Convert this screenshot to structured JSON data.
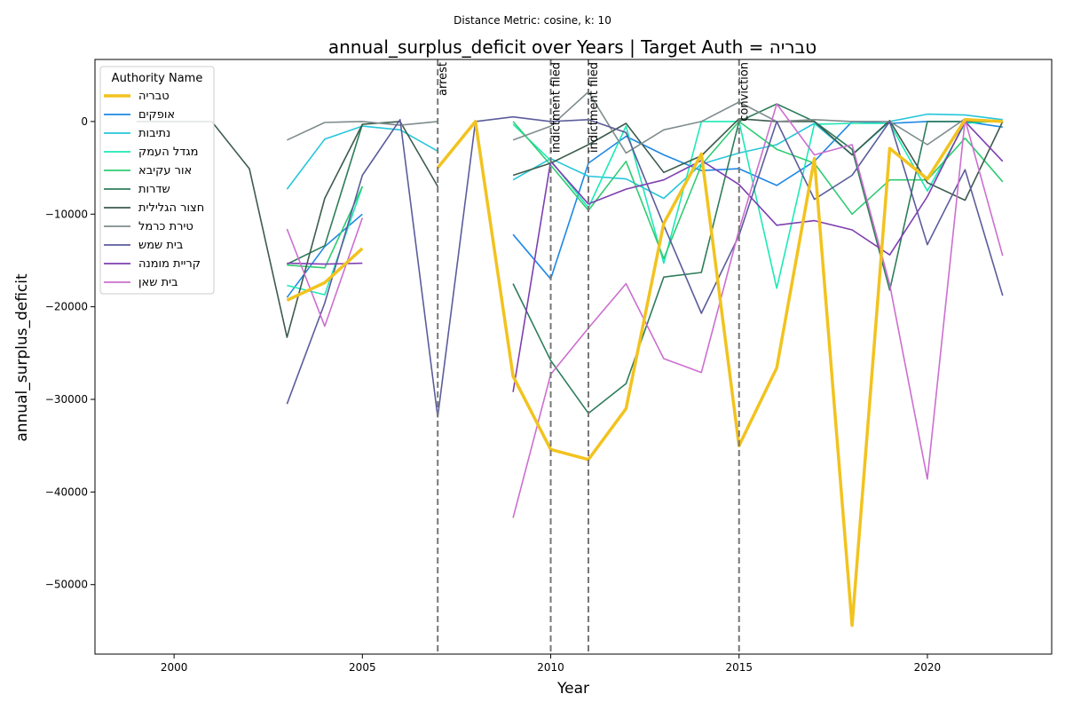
{
  "suptitle": "Distance Metric: cosine, k: 10",
  "chart_data": {
    "type": "line",
    "title": "annual_surplus_deficit over Years | Target Auth = טבריה",
    "xlabel": "Year",
    "ylabel": "annual_surplus_deficit",
    "xlim": [
      1997.9,
      2023.3
    ],
    "ylim": [
      -57500,
      6700
    ],
    "x_ticks": [
      2000,
      2005,
      2010,
      2015,
      2020
    ],
    "y_ticks": [
      -50000,
      -40000,
      -30000,
      -20000,
      -10000,
      0
    ],
    "grid": false,
    "legend": {
      "title": "Authority Name",
      "position": "upper-left"
    },
    "events": [
      {
        "x": 2007,
        "label": "arrest"
      },
      {
        "x": 2010,
        "label": "indictment filed"
      },
      {
        "x": 2011,
        "label": "indictment filed"
      },
      {
        "x": 2015,
        "label": "conviction"
      }
    ],
    "series": [
      {
        "name": "טבריה",
        "color": "#f2c31f",
        "target": true,
        "points": [
          [
            2003,
            -19300
          ],
          [
            2004,
            -17400
          ],
          [
            2005,
            -13700
          ],
          [
            null,
            null
          ],
          [
            2007,
            -5000
          ],
          [
            2008,
            0
          ],
          [
            2009,
            -27500
          ],
          [
            2010,
            -35400
          ],
          [
            2011,
            -36500
          ],
          [
            2012,
            -31000
          ],
          [
            2013,
            -11000
          ],
          [
            2014,
            -3500
          ],
          [
            2015,
            -35000
          ],
          [
            2016,
            -26600
          ],
          [
            2017,
            -4000
          ],
          [
            2018,
            -54400
          ],
          [
            2019,
            -2900
          ],
          [
            2020,
            -6200
          ],
          [
            2021,
            200
          ],
          [
            2022,
            0
          ]
        ]
      },
      {
        "name": "אופקים",
        "color": "#1e88e5",
        "points": [
          [
            2003,
            -19000
          ],
          [
            2004,
            -13500
          ],
          [
            2005,
            -10000
          ],
          [
            null,
            null
          ],
          [
            2009,
            -12200
          ],
          [
            2010,
            -17000
          ],
          [
            2011,
            -4500
          ],
          [
            2012,
            -1600
          ],
          [
            2013,
            -3600
          ],
          [
            2014,
            -5300
          ],
          [
            2015,
            -5100
          ],
          [
            2016,
            -6900
          ],
          [
            2017,
            -4300
          ],
          [
            2018,
            0
          ],
          [
            2019,
            -200
          ],
          [
            2020,
            0
          ],
          [
            2021,
            0
          ],
          [
            2022,
            -600
          ]
        ]
      },
      {
        "name": "נתיבות",
        "color": "#26c6da",
        "points": [
          [
            2003,
            -7300
          ],
          [
            2004,
            -1900
          ],
          [
            2005,
            -500
          ],
          [
            2006,
            -900
          ],
          [
            2007,
            -3200
          ],
          [
            null,
            null
          ],
          [
            2009,
            -6300
          ],
          [
            2010,
            -4000
          ],
          [
            2011,
            -5900
          ],
          [
            2012,
            -6200
          ],
          [
            2013,
            -8300
          ],
          [
            2014,
            -4600
          ],
          [
            2015,
            -3400
          ],
          [
            2016,
            -2500
          ],
          [
            2017,
            -200
          ],
          [
            2018,
            -3600
          ],
          [
            2019,
            0
          ],
          [
            2020,
            800
          ],
          [
            2021,
            700
          ],
          [
            2022,
            200
          ]
        ]
      },
      {
        "name": "מגדל העמק",
        "color": "#1de9b6",
        "points": [
          [
            2003,
            -17700
          ],
          [
            2004,
            -18700
          ],
          [
            2005,
            -7000
          ],
          [
            null,
            null
          ],
          [
            2009,
            -300
          ],
          [
            2010,
            -4200
          ],
          [
            2011,
            -9300
          ],
          [
            2012,
            -500
          ],
          [
            2013,
            -15300
          ],
          [
            2014,
            0
          ],
          [
            2015,
            0
          ],
          [
            2016,
            -18000
          ],
          [
            2017,
            -300
          ],
          [
            2018,
            -200
          ],
          [
            2019,
            -200
          ],
          [
            2020,
            -7500
          ],
          [
            2021,
            -200
          ],
          [
            2022,
            100
          ]
        ]
      },
      {
        "name": "אור עקיבא",
        "color": "#2ecc71",
        "points": [
          [
            2003,
            -15500
          ],
          [
            2004,
            -15800
          ],
          [
            2005,
            -7000
          ],
          [
            null,
            null
          ],
          [
            2009,
            0
          ],
          [
            2010,
            -4700
          ],
          [
            2011,
            -9600
          ],
          [
            2012,
            -4300
          ],
          [
            2013,
            -14800
          ],
          [
            2014,
            -4700
          ],
          [
            2015,
            0
          ],
          [
            2016,
            -3000
          ],
          [
            2017,
            -4500
          ],
          [
            2018,
            -10000
          ],
          [
            2019,
            -6300
          ],
          [
            2020,
            -6300
          ],
          [
            2021,
            -1800
          ],
          [
            2022,
            -6500
          ]
        ]
      },
      {
        "name": "שדרות",
        "color": "#2e7d5b",
        "points": [
          [
            2003,
            -15400
          ],
          [
            2004,
            -13400
          ],
          [
            2005,
            -300
          ],
          [
            null,
            null
          ],
          [
            2009,
            -17500
          ],
          [
            2010,
            -25800
          ],
          [
            2011,
            -31500
          ],
          [
            2012,
            -28300
          ],
          [
            2013,
            -16800
          ],
          [
            2014,
            -16300
          ],
          [
            2015,
            0
          ],
          [
            2016,
            1900
          ],
          [
            2017,
            0
          ],
          [
            2018,
            -3000
          ],
          [
            2019,
            -18200
          ],
          [
            2020,
            0
          ],
          [
            2021,
            0
          ],
          [
            2022,
            0
          ]
        ]
      },
      {
        "name": "חצור הגלילית",
        "color": "#3d5c4d",
        "points": [
          [
            1999,
            0
          ],
          [
            2000,
            0
          ],
          [
            2001,
            0
          ],
          [
            2002,
            -5100
          ],
          [
            2003,
            -23300
          ],
          [
            2004,
            -8300
          ],
          [
            2005,
            -300
          ],
          [
            2006,
            0
          ],
          [
            2007,
            -7000
          ],
          [
            null,
            null
          ],
          [
            2009,
            -5800
          ],
          [
            2010,
            -4500
          ],
          [
            2011,
            -2500
          ],
          [
            2012,
            -200
          ],
          [
            2013,
            -5500
          ],
          [
            2014,
            -3700
          ],
          [
            2015,
            300
          ],
          [
            2016,
            0
          ],
          [
            2017,
            0
          ],
          [
            2018,
            -3600
          ],
          [
            2019,
            100
          ],
          [
            2020,
            -6600
          ],
          [
            2021,
            -8500
          ],
          [
            2022,
            0
          ]
        ]
      },
      {
        "name": "טירת כרמל",
        "color": "#7f8c8d",
        "points": [
          [
            2003,
            -2000
          ],
          [
            2004,
            -100
          ],
          [
            2005,
            0
          ],
          [
            2006,
            -400
          ],
          [
            2007,
            0
          ],
          [
            null,
            null
          ],
          [
            2009,
            -2000
          ],
          [
            2010,
            -500
          ],
          [
            2011,
            3200
          ],
          [
            2012,
            -3400
          ],
          [
            2013,
            -900
          ],
          [
            2014,
            0
          ],
          [
            2015,
            2100
          ],
          [
            2016,
            0
          ],
          [
            2017,
            200
          ],
          [
            2018,
            0
          ],
          [
            2019,
            0
          ],
          [
            2020,
            -2500
          ],
          [
            2021,
            300
          ],
          [
            2022,
            0
          ]
        ]
      },
      {
        "name": "בית שמש",
        "color": "#5c5c9c",
        "points": [
          [
            2003,
            -30500
          ],
          [
            2004,
            -19600
          ],
          [
            2005,
            -5800
          ],
          [
            2006,
            200
          ],
          [
            2007,
            -31900
          ],
          [
            2008,
            0
          ],
          [
            2009,
            500
          ],
          [
            2010,
            0
          ],
          [
            2011,
            200
          ],
          [
            2012,
            -1200
          ],
          [
            2013,
            -11200
          ],
          [
            2014,
            -20700
          ],
          [
            2015,
            -12300
          ],
          [
            2016,
            0
          ],
          [
            2017,
            -8400
          ],
          [
            2018,
            -5800
          ],
          [
            2019,
            0
          ],
          [
            2020,
            -13300
          ],
          [
            2021,
            -5200
          ],
          [
            2022,
            -18800
          ]
        ]
      },
      {
        "name": "קריית מומנה",
        "color": "#7e3fb0",
        "points": [
          [
            2003,
            -15300
          ],
          [
            2004,
            -15400
          ],
          [
            2005,
            -15300
          ],
          [
            null,
            null
          ],
          [
            2009,
            -29200
          ],
          [
            2010,
            -4300
          ],
          [
            2011,
            -8900
          ],
          [
            2012,
            -7300
          ],
          [
            2013,
            -6300
          ],
          [
            2014,
            -4200
          ],
          [
            2015,
            -6800
          ],
          [
            2016,
            -11200
          ],
          [
            2017,
            -10700
          ],
          [
            2018,
            -11700
          ],
          [
            2019,
            -14400
          ],
          [
            2020,
            -8100
          ],
          [
            2021,
            0
          ],
          [
            2022,
            -4300
          ]
        ]
      },
      {
        "name": "בית שאן",
        "color": "#cc6fcf",
        "points": [
          [
            2003,
            -11600
          ],
          [
            2004,
            -22100
          ],
          [
            2005,
            -10400
          ],
          [
            null,
            null
          ],
          [
            2009,
            -42800
          ],
          [
            2010,
            -27300
          ],
          [
            2011,
            -22300
          ],
          [
            2012,
            -17500
          ],
          [
            2013,
            -25600
          ],
          [
            2014,
            -27100
          ],
          [
            2015,
            -11700
          ],
          [
            2016,
            1900
          ],
          [
            2017,
            -3600
          ],
          [
            2018,
            -2500
          ],
          [
            2019,
            -17600
          ],
          [
            2020,
            -38600
          ],
          [
            2021,
            200
          ],
          [
            2022,
            -14500
          ]
        ]
      }
    ]
  }
}
